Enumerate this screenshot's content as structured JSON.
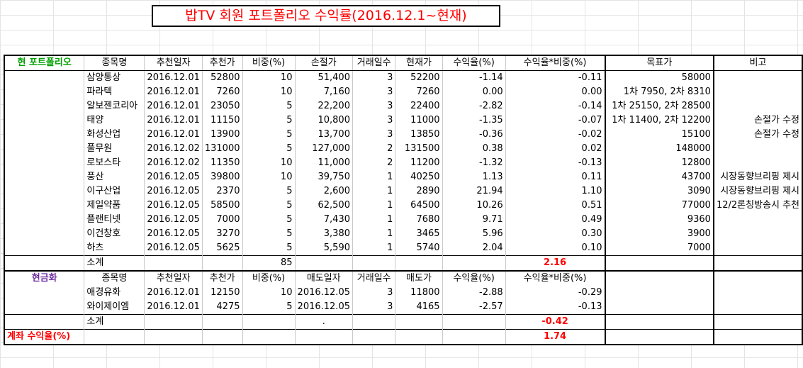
{
  "title": "밥TV 회원 포트폴리오 수익률(2016.12.1~현재)",
  "portfolio": {
    "section_label": "현 포트폴리오",
    "headers": [
      "종목명",
      "추천일자",
      "추천가",
      "비중(%)",
      "손절가",
      "거래일수",
      "현재가",
      "수익율(%)",
      "수익율*비중(%)",
      "목표가",
      "비고"
    ],
    "rows": [
      [
        "삼양통상",
        "2016.12.01",
        "52800",
        "10",
        "51,400",
        "3",
        "52200",
        "-1.14",
        "-0.11",
        "58000",
        ""
      ],
      [
        "파라텍",
        "2016.12.01",
        "7260",
        "10",
        "7,160",
        "3",
        "7260",
        "0.00",
        "0.00",
        "1차 7950, 2차 8310",
        ""
      ],
      [
        "알보젠코리아",
        "2016.12.01",
        "23050",
        "5",
        "22,200",
        "3",
        "22400",
        "-2.82",
        "-0.14",
        "1차 25150, 2차 28500",
        ""
      ],
      [
        "태양",
        "2016.12.01",
        "11150",
        "5",
        "10,800",
        "3",
        "11000",
        "-1.35",
        "-0.07",
        "1차 11400, 2차 12200",
        "손절가 수정"
      ],
      [
        "화성산업",
        "2016.12.01",
        "13900",
        "5",
        "13,700",
        "3",
        "13850",
        "-0.36",
        "-0.02",
        "15100",
        "손절가 수정"
      ],
      [
        "풀무원",
        "2016.12.02",
        "131000",
        "5",
        "127,000",
        "2",
        "131500",
        "0.38",
        "0.02",
        "148000",
        ""
      ],
      [
        "로보스타",
        "2016.12.02",
        "11350",
        "10",
        "11,000",
        "2",
        "11200",
        "-1.32",
        "-0.13",
        "12800",
        ""
      ],
      [
        "풍산",
        "2016.12.05",
        "39800",
        "10",
        "39,750",
        "1",
        "40250",
        "1.13",
        "0.11",
        "43700",
        "시장동향브리핑 제시"
      ],
      [
        "이구산업",
        "2016.12.05",
        "2370",
        "5",
        "2,600",
        "1",
        "2890",
        "21.94",
        "1.10",
        "3090",
        "시장동향브리핑 제시"
      ],
      [
        "제일약품",
        "2016.12.05",
        "58500",
        "5",
        "62,500",
        "1",
        "64500",
        "10.26",
        "0.51",
        "77000",
        "12/2론칭방송시 추천"
      ],
      [
        "플랜티넷",
        "2016.12.05",
        "7000",
        "5",
        "7,430",
        "1",
        "7680",
        "9.71",
        "0.49",
        "9360",
        ""
      ],
      [
        "이건창호",
        "2016.12.05",
        "3270",
        "5",
        "3,380",
        "1",
        "3465",
        "5.96",
        "0.30",
        "3900",
        ""
      ],
      [
        "하츠",
        "2016.12.05",
        "5625",
        "5",
        "5,590",
        "1",
        "5740",
        "2.04",
        "0.10",
        "7000",
        ""
      ]
    ],
    "subtotal_label": "소계",
    "subtotal_weight": "85",
    "subtotal_return": "2.16"
  },
  "cash": {
    "section_label": "현금화",
    "headers": [
      "종목명",
      "추천일자",
      "추천가",
      "비중(%)",
      "매도일자",
      "거래일수",
      "매도가",
      "수익율(%)",
      "수익율*비중(%)"
    ],
    "rows": [
      [
        "애경유화",
        "2016.12.01",
        "12150",
        "10",
        "2016.12.05",
        "3",
        "11800",
        "-2.88",
        "-0.29"
      ],
      [
        "와이제이엠",
        "2016.12.01",
        "4275",
        "5",
        "2016.12.05",
        "3",
        "4165",
        "-2.57",
        "-0.13"
      ]
    ],
    "subtotal_label": "소계",
    "subtotal_dot": ".",
    "subtotal_return": "-0.42"
  },
  "account": {
    "label": "계좌 수익율(%)",
    "value": "1.74"
  }
}
